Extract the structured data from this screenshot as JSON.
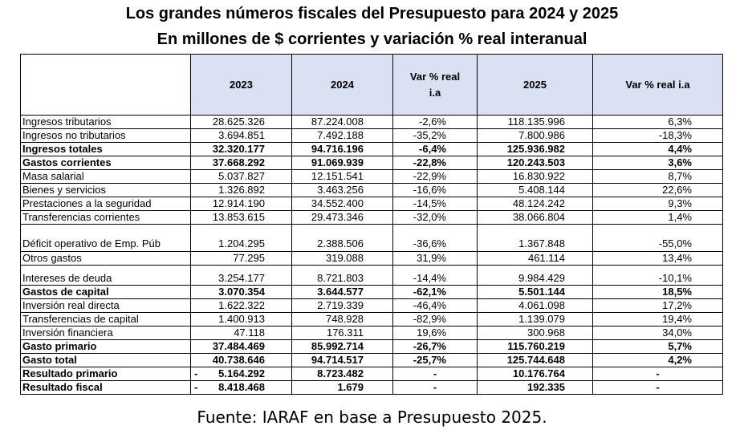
{
  "title_line1": "Los grandes números fiscales del Presupuesto para 2024 y 2025",
  "title_line2": "En millones de $ corrientes y variación % real interanual",
  "headers": [
    "",
    "2023",
    "2024",
    "Var % real i.a",
    "2025",
    "Var % real i.a"
  ],
  "rows": [
    {
      "label": "Ingresos tributarios",
      "v2023": "28.625.326",
      "v2024": "87.224.008",
      "var24": "-2,6%",
      "v2025": "118.135.996",
      "var25": "6,3%",
      "bold": false
    },
    {
      "label": "Ingresos no tributarios",
      "v2023": "3.694.851",
      "v2024": "7.492.188",
      "var24": "-35,2%",
      "v2025": "7.800.986",
      "var25": "-18,3%",
      "bold": false
    },
    {
      "label": "Ingresos totales",
      "v2023": "32.320.177",
      "v2024": "94.716.196",
      "var24": "-6,4%",
      "v2025": "125.936.982",
      "var25": "4,4%",
      "bold": true
    },
    {
      "label": "Gastos corrientes",
      "v2023": "37.668.292",
      "v2024": "91.069.939",
      "var24": "-22,8%",
      "v2025": "120.243.503",
      "var25": "3,6%",
      "bold": true
    },
    {
      "label": "Masa salarial",
      "v2023": "5.037.827",
      "v2024": "12.151.541",
      "var24": "-22,9%",
      "v2025": "16.830.922",
      "var25": "8,7%",
      "bold": false
    },
    {
      "label": "Bienes y servicios",
      "v2023": "1.326.892",
      "v2024": "3.463.256",
      "var24": "-16,6%",
      "v2025": "5.408.144",
      "var25": "22,6%",
      "bold": false
    },
    {
      "label": "Prestaciones a la seguridad",
      "v2023": "12.914.190",
      "v2024": "34.552.400",
      "var24": "-14,5%",
      "v2025": "48.124.242",
      "var25": "9,3%",
      "bold": false
    },
    {
      "label": "Transferencias corrientes",
      "v2023": "13.853.615",
      "v2024": "29.473.346",
      "var24": "-32,0%",
      "v2025": "38.066.804",
      "var25": "1,4%",
      "bold": false
    },
    {
      "label": "Déficit operativo de Emp. Púb",
      "v2023": "1.204.295",
      "v2024": "2.388.506",
      "var24": "-36,6%",
      "v2025": "1.367.848",
      "var25": "-55,0%",
      "bold": false,
      "tall": true
    },
    {
      "label": "Otros gastos",
      "v2023": "77.295",
      "v2024": "319.088",
      "var24": "31,9%",
      "v2025": "461.114",
      "var25": "13,4%",
      "bold": false
    },
    {
      "label": "Intereses de deuda",
      "v2023": "3.254.177",
      "v2024": "8.721.803",
      "var24": "-14,4%",
      "v2025": "9.984.429",
      "var25": "-10,1%",
      "bold": false,
      "tall2": true
    },
    {
      "label": "Gastos de capital",
      "v2023": "3.070.354",
      "v2024": "3.644.577",
      "var24": "-62,1%",
      "v2025": "5.501.144",
      "var25": "18,5%",
      "bold": true
    },
    {
      "label": "Inversión real directa",
      "v2023": "1.622.322",
      "v2024": "2.719.339",
      "var24": "-46,4%",
      "v2025": "4.061.098",
      "var25": "17,2%",
      "bold": false
    },
    {
      "label": "Transferencias de capital",
      "v2023": "1.400.913",
      "v2024": "748.928",
      "var24": "-82,9%",
      "v2025": "1.139.079",
      "var25": "19,4%",
      "bold": false
    },
    {
      "label": "Inversión financiera",
      "v2023": "47.118",
      "v2024": "176.311",
      "var24": "19,6%",
      "v2025": "300.968",
      "var25": "34,0%",
      "bold": false
    },
    {
      "label": "Gasto primario",
      "v2023": "37.484.469",
      "v2024": "85.992.714",
      "var24": "-26,7%",
      "v2025": "115.760.219",
      "var25": "5,7%",
      "bold": true
    },
    {
      "label": "Gasto total",
      "v2023": "40.738.646",
      "v2024": "94.714.517",
      "var24": "-25,7%",
      "v2025": "125.744.648",
      "var25": "4,2%",
      "bold": true
    },
    {
      "label": "Resultado primario",
      "v2023": "5.164.292",
      "lead2023": "-",
      "v2024": "8.723.482",
      "var24": "-",
      "v2025": "10.176.764",
      "var25": "-",
      "bold": true
    },
    {
      "label": "Resultado fiscal",
      "v2023": "8.418.468",
      "lead2023": "-",
      "v2024": "1.679",
      "var24": "-",
      "v2025": "192.335",
      "var25": "-",
      "bold": true
    }
  ],
  "source": "Fuente: IARAF en base a Presupuesto 2025."
}
